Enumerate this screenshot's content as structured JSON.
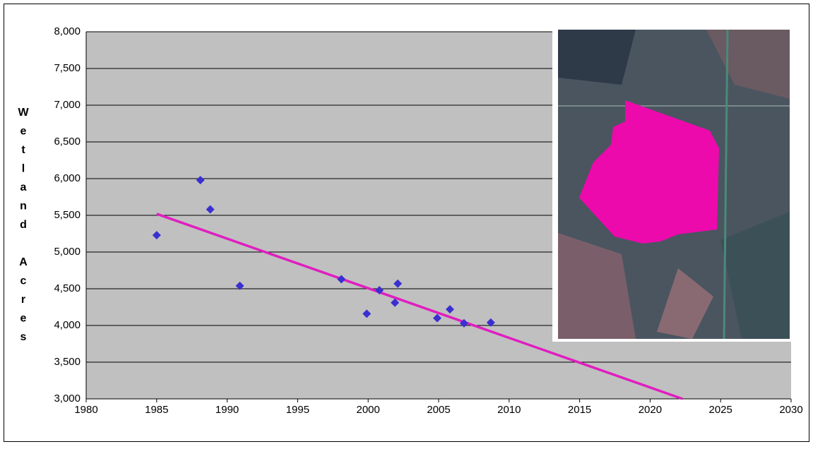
{
  "chart_data": {
    "type": "scatter",
    "y_label": "Wetland Acres",
    "x": [
      1985,
      1988.1,
      1988.8,
      1990.9,
      1998.1,
      1999.9,
      2000.8,
      2001.9,
      2002.1,
      2004.9,
      2005.8,
      2006.8,
      2008.7
    ],
    "series": [
      {
        "color": "#3a2fd0",
        "values": [
          5230,
          5980,
          5580,
          4540,
          4630,
          4160,
          4480,
          4310,
          4570,
          4100,
          4220,
          4030,
          4040
        ]
      }
    ],
    "trendline": {
      "color": "#e01ec0",
      "x": [
        1985,
        2022.3
      ],
      "values": [
        5520,
        3000
      ]
    },
    "xlim": [
      1980,
      2030
    ],
    "xticks": [
      1980,
      1985,
      1990,
      1995,
      2000,
      2005,
      2010,
      2015,
      2020,
      2025,
      2030
    ],
    "ylim": [
      3000,
      8000
    ],
    "yticks": [
      {
        "value": 3000,
        "label": "3,000"
      },
      {
        "value": 3500,
        "label": "3,500"
      },
      {
        "value": 4000,
        "label": "4,000"
      },
      {
        "value": 4500,
        "label": "4,500"
      },
      {
        "value": 5000,
        "label": "5,000"
      },
      {
        "value": 5500,
        "label": "5,500"
      },
      {
        "value": 6000,
        "label": "6,000"
      },
      {
        "value": 6500,
        "label": "6,500"
      },
      {
        "value": 7000,
        "label": "7,000"
      },
      {
        "value": 7500,
        "label": "7,500"
      },
      {
        "value": 8000,
        "label": "8,000"
      }
    ],
    "grid": true
  }
}
